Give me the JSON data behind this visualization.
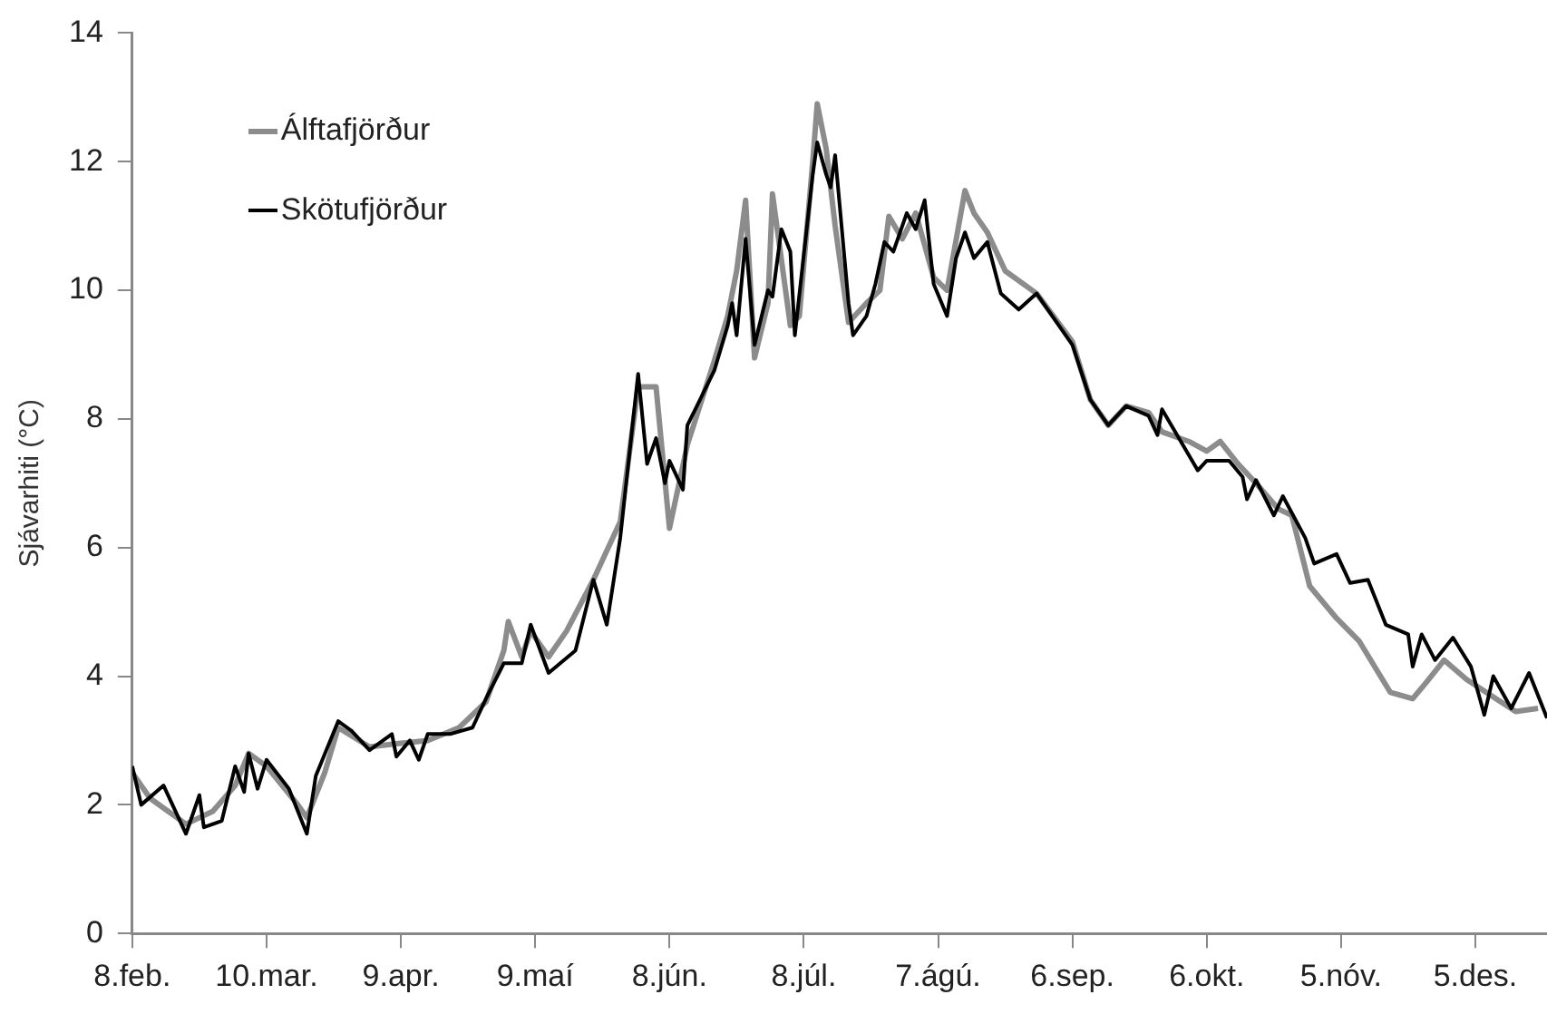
{
  "chart_data": {
    "type": "line",
    "ylabel": "Sjávarhiti (°C)",
    "xlim": [
      "--02-08",
      "--12-21"
    ],
    "ylim": [
      0,
      14
    ],
    "yticks": [
      0,
      2,
      4,
      6,
      8,
      10,
      12,
      14
    ],
    "xticks": [
      {
        "value": "--02-08",
        "label": "8.feb."
      },
      {
        "value": "--03-10",
        "label": "10.mar."
      },
      {
        "value": "--04-09",
        "label": "9.apr."
      },
      {
        "value": "--05-09",
        "label": "9.maí"
      },
      {
        "value": "--06-08",
        "label": "8.jún."
      },
      {
        "value": "--07-08",
        "label": "8.júl."
      },
      {
        "value": "--08-07",
        "label": "7.ágú."
      },
      {
        "value": "--09-06",
        "label": "6.sep."
      },
      {
        "value": "--10-06",
        "label": "6.okt."
      },
      {
        "value": "--11-05",
        "label": "5.nóv."
      },
      {
        "value": "--12-05",
        "label": "5.des."
      }
    ],
    "grid": false,
    "legend": "top left",
    "marker": "none",
    "line_style": "solid",
    "series": [
      {
        "name": "Álftafjörður",
        "color": "#8c8c8c",
        "x": [
          "--02-08",
          "--02-12",
          "--02-20",
          "--02-26",
          "--03-03",
          "--03-06",
          "--03-10",
          "--03-17",
          "--03-19",
          "--03-23",
          "--03-26",
          "--04-02",
          "--04-08",
          "--04-15",
          "--04-22",
          "--04-28",
          "--05-02",
          "--05-03",
          "--05-06",
          "--05-08",
          "--05-12",
          "--05-16",
          "--05-22",
          "--05-28",
          "--06-01",
          "--06-05",
          "--06-08",
          "--06-12",
          "--06-18",
          "--06-21",
          "--06-23",
          "--06-25",
          "--06-27",
          "--06-30",
          "--07-01",
          "--07-05",
          "--07-07",
          "--07-10",
          "--07-11",
          "--07-13",
          "--07-15",
          "--07-18",
          "--07-22",
          "--07-25",
          "--07-27",
          "--07-30",
          "--08-02",
          "--08-06",
          "--08-09",
          "--08-13",
          "--08-15",
          "--08-18",
          "--08-22",
          "--08-29",
          "--09-06",
          "--09-10",
          "--09-14",
          "--09-18",
          "--09-23",
          "--09-26",
          "--10-02",
          "--10-06",
          "--10-09",
          "--10-13",
          "--10-17",
          "--10-22",
          "--10-25",
          "--10-29",
          "--11-04",
          "--11-09",
          "--11-16",
          "--11-21",
          "--11-24",
          "--11-28",
          "--12-03",
          "--12-14",
          "--12-19"
        ],
        "values": [
          2.5,
          2.1,
          1.7,
          1.9,
          2.3,
          2.8,
          2.6,
          2.0,
          1.8,
          2.5,
          3.2,
          2.9,
          2.95,
          3.0,
          3.2,
          3.6,
          4.4,
          4.85,
          4.3,
          4.7,
          4.3,
          4.7,
          5.5,
          6.4,
          8.5,
          8.5,
          6.3,
          7.6,
          8.9,
          9.6,
          10.3,
          11.4,
          8.95,
          9.8,
          11.5,
          9.45,
          9.6,
          12.0,
          12.9,
          12.2,
          11.0,
          9.5,
          9.8,
          10.0,
          11.15,
          10.8,
          11.2,
          10.2,
          10.0,
          11.55,
          11.2,
          10.9,
          10.3,
          9.95,
          9.2,
          8.3,
          7.9,
          8.2,
          8.1,
          7.8,
          7.65,
          7.5,
          7.65,
          7.3,
          7.0,
          6.6,
          6.5,
          5.4,
          4.9,
          4.55,
          3.75,
          3.65,
          3.9,
          4.25,
          3.95,
          3.45,
          3.5
        ]
      },
      {
        "name": "Skötufjörður",
        "color": "#000000",
        "x": [
          "--02-08",
          "--02-10",
          "--02-15",
          "--02-20",
          "--02-23",
          "--02-24",
          "--02-28",
          "--03-03",
          "--03-05",
          "--03-06",
          "--03-08",
          "--03-10",
          "--03-15",
          "--03-19",
          "--03-21",
          "--03-26",
          "--03-29",
          "--04-02",
          "--04-07",
          "--04-08",
          "--04-11",
          "--04-13",
          "--04-15",
          "--04-20",
          "--04-25",
          "--04-28",
          "--05-02",
          "--05-06",
          "--05-08",
          "--05-12",
          "--05-18",
          "--05-22",
          "--05-25",
          "--05-28",
          "--06-01",
          "--06-03",
          "--06-05",
          "--06-07",
          "--06-08",
          "--06-11",
          "--06-12",
          "--06-18",
          "--06-21",
          "--06-22",
          "--06-23",
          "--06-25",
          "--06-27",
          "--06-30",
          "--07-01",
          "--07-03",
          "--07-05",
          "--07-06",
          "--07-10",
          "--07-11",
          "--07-13",
          "--07-14",
          "--07-15",
          "--07-18",
          "--07-19",
          "--07-22",
          "--07-24",
          "--07-26",
          "--07-28",
          "--07-31",
          "--08-02",
          "--08-04",
          "--08-06",
          "--08-09",
          "--08-11",
          "--08-13",
          "--08-15",
          "--08-18",
          "--08-21",
          "--08-25",
          "--08-29",
          "--09-06",
          "--09-10",
          "--09-14",
          "--09-18",
          "--09-23",
          "--09-25",
          "--09-26",
          "--10-04",
          "--10-06",
          "--10-11",
          "--10-14",
          "--10-15",
          "--10-17",
          "--10-21",
          "--10-23",
          "--10-28",
          "--10-30",
          "--11-04",
          "--11-07",
          "--11-11",
          "--11-15",
          "--11-20",
          "--11-21",
          "--11-23",
          "--11-26",
          "--11-30",
          "--12-04",
          "--12-07",
          "--12-09",
          "--12-13",
          "--12-17",
          "--12-21"
        ],
        "values": [
          2.6,
          2.0,
          2.3,
          1.55,
          2.15,
          1.65,
          1.75,
          2.6,
          2.2,
          2.8,
          2.25,
          2.7,
          2.25,
          1.55,
          2.45,
          3.3,
          3.15,
          2.85,
          3.1,
          2.75,
          3.0,
          2.7,
          3.1,
          3.1,
          3.2,
          3.65,
          4.2,
          4.2,
          4.8,
          4.05,
          4.4,
          5.5,
          4.8,
          6.15,
          8.7,
          7.3,
          7.7,
          7.0,
          7.35,
          6.9,
          7.9,
          8.75,
          9.45,
          9.8,
          9.3,
          10.8,
          9.15,
          10.0,
          9.9,
          10.95,
          10.6,
          9.3,
          11.8,
          12.3,
          11.8,
          11.6,
          12.1,
          9.8,
          9.3,
          9.6,
          10.1,
          10.75,
          10.6,
          11.2,
          10.95,
          11.4,
          10.1,
          9.6,
          10.5,
          10.9,
          10.5,
          10.75,
          9.95,
          9.7,
          9.95,
          9.15,
          8.3,
          7.9,
          8.2,
          8.05,
          7.75,
          8.15,
          7.2,
          7.35,
          7.35,
          7.1,
          6.75,
          7.05,
          6.5,
          6.8,
          6.15,
          5.75,
          5.9,
          5.45,
          5.5,
          4.8,
          4.65,
          4.15,
          4.65,
          4.25,
          4.6,
          4.15,
          3.4,
          4.0,
          3.5,
          4.05,
          3.35
        ]
      }
    ]
  }
}
